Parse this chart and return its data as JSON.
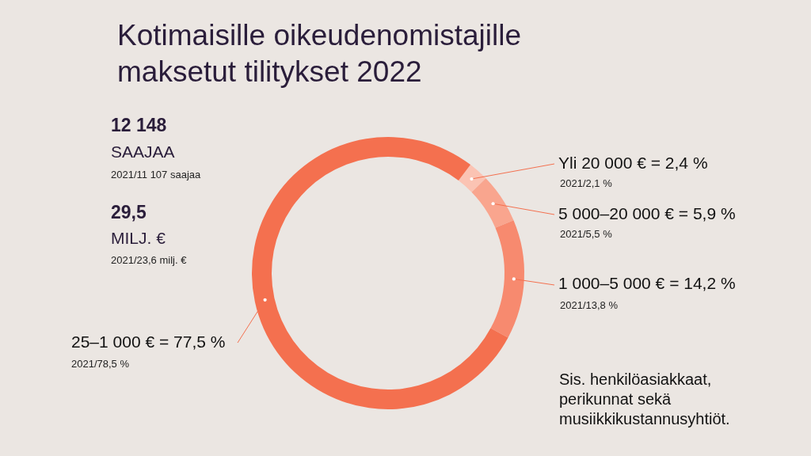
{
  "chart_data": {
    "type": "donut",
    "title": "Kotimaisille oikeudenomistajille\nmaksetut tilitykset 2022",
    "categories": [
      "Yli 20 000 € = 2,4 %",
      "5 000–20 000 € = 5,9 %",
      "1 000–5 000 € = 14,2 %",
      "25–1 000 € = 77,5 %"
    ],
    "values": [
      2.4,
      5.9,
      14.2,
      77.5
    ],
    "colors": [
      "#fbc3b3",
      "#f9a58e",
      "#f78a6f",
      "#f4704f"
    ],
    "annotations": [
      "12 148",
      "SAAJAA",
      "2021/11 107 saajaa",
      "29,5",
      "MILJ. €",
      "2021/23,6 milj. €",
      "2021/2,1 %",
      "2021/5,5 %",
      "2021/13,8 %",
      "2021/78,5 %",
      "Sis. henkilöasiakkaat,\nperikunnat sekä\nmusiikkikustannusyhtiöt."
    ]
  }
}
